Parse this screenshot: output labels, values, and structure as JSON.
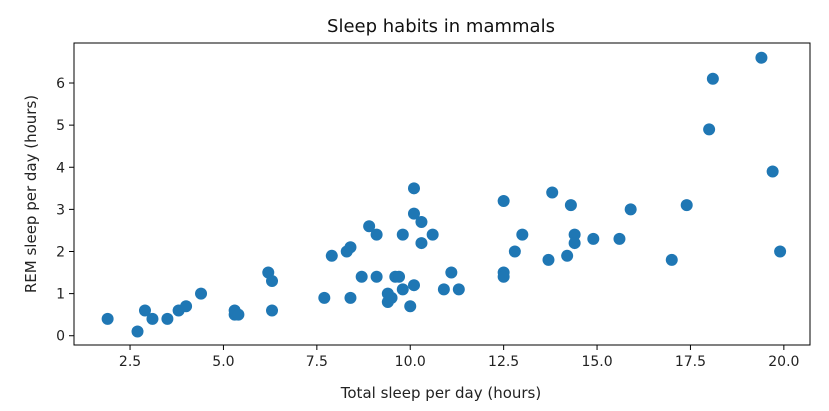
{
  "chart_data": {
    "type": "scatter",
    "title": "Sleep habits in mammals",
    "xlabel": "Total sleep per day (hours)",
    "ylabel": "REM sleep per day (hours)",
    "xlim": [
      1.0,
      20.7
    ],
    "ylim": [
      -0.22,
      6.95
    ],
    "xticks": [
      2.5,
      5.0,
      7.5,
      10.0,
      12.5,
      15.0,
      17.5,
      20.0
    ],
    "xtick_labels": [
      "2.5",
      "5.0",
      "7.5",
      "10.0",
      "12.5",
      "15.0",
      "17.5",
      "20.0"
    ],
    "yticks": [
      0,
      1,
      2,
      3,
      4,
      5,
      6
    ],
    "ytick_labels": [
      "0",
      "1",
      "2",
      "3",
      "4",
      "5",
      "6"
    ],
    "grid": false,
    "marker_color": "#1f77b4",
    "series": [
      {
        "points": [
          [
            1.9,
            0.4
          ],
          [
            2.7,
            0.1
          ],
          [
            2.9,
            0.6
          ],
          [
            3.1,
            0.4
          ],
          [
            3.5,
            0.4
          ],
          [
            3.8,
            0.6
          ],
          [
            4.0,
            0.7
          ],
          [
            4.4,
            1.0
          ],
          [
            5.3,
            0.5
          ],
          [
            5.3,
            0.6
          ],
          [
            5.4,
            0.5
          ],
          [
            6.2,
            1.5
          ],
          [
            6.3,
            1.3
          ],
          [
            6.3,
            0.6
          ],
          [
            7.7,
            0.9
          ],
          [
            7.9,
            1.9
          ],
          [
            8.3,
            2.0
          ],
          [
            8.4,
            2.1
          ],
          [
            8.4,
            0.9
          ],
          [
            8.7,
            1.4
          ],
          [
            8.9,
            2.6
          ],
          [
            9.1,
            2.4
          ],
          [
            9.1,
            1.4
          ],
          [
            9.4,
            0.8
          ],
          [
            9.4,
            1.0
          ],
          [
            9.5,
            0.9
          ],
          [
            9.6,
            1.4
          ],
          [
            9.7,
            1.4
          ],
          [
            9.8,
            2.4
          ],
          [
            9.8,
            1.1
          ],
          [
            10.0,
            0.7
          ],
          [
            10.1,
            3.5
          ],
          [
            10.1,
            2.9
          ],
          [
            10.1,
            1.2
          ],
          [
            10.3,
            2.7
          ],
          [
            10.3,
            2.2
          ],
          [
            10.6,
            2.4
          ],
          [
            10.9,
            1.1
          ],
          [
            11.1,
            1.5
          ],
          [
            11.3,
            1.1
          ],
          [
            12.5,
            3.2
          ],
          [
            12.5,
            1.5
          ],
          [
            12.5,
            1.4
          ],
          [
            12.8,
            2.0
          ],
          [
            13.0,
            2.4
          ],
          [
            13.7,
            1.8
          ],
          [
            13.8,
            3.4
          ],
          [
            14.2,
            1.9
          ],
          [
            14.3,
            3.1
          ],
          [
            14.4,
            2.4
          ],
          [
            14.4,
            2.2
          ],
          [
            14.9,
            2.3
          ],
          [
            15.6,
            2.3
          ],
          [
            15.9,
            3.0
          ],
          [
            17.0,
            1.8
          ],
          [
            17.4,
            3.1
          ],
          [
            18.0,
            4.9
          ],
          [
            18.1,
            6.1
          ],
          [
            19.4,
            6.6
          ],
          [
            19.7,
            3.9
          ],
          [
            19.9,
            2.0
          ]
        ]
      }
    ]
  }
}
